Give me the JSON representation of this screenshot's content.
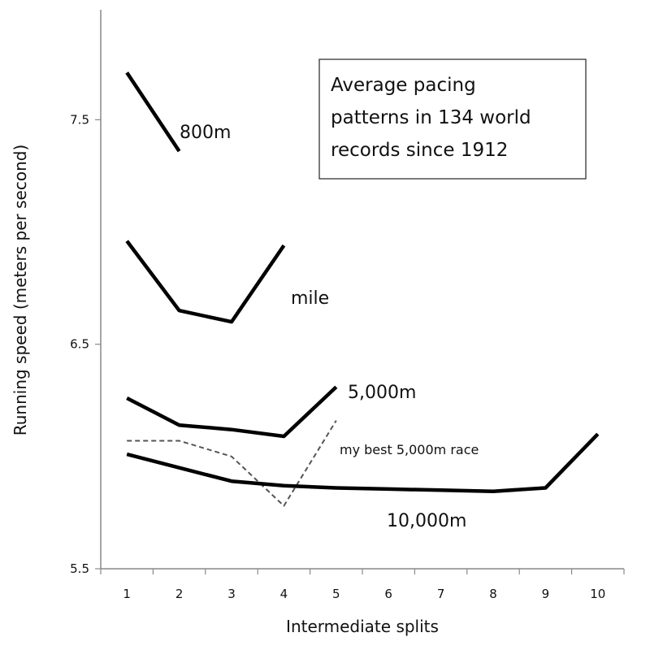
{
  "chart_data": {
    "type": "line",
    "title_lines": [
      "Average pacing",
      "patterns in 134 world",
      "records since 1912"
    ],
    "xlabel": "Intermediate splits",
    "ylabel": "Running speed (meters per second)",
    "x_ticks": [
      "1",
      "2",
      "3",
      "4",
      "5",
      "6",
      "7",
      "8",
      "9",
      "10"
    ],
    "y_ticks": [
      "5.5",
      "6.5",
      "7.5"
    ],
    "ylim": [
      5.5,
      7.99
    ],
    "xlim": [
      0.5,
      10.5
    ],
    "series": [
      {
        "name": "800m",
        "style": "solid",
        "x": [
          1,
          2
        ],
        "values": [
          7.71,
          7.36
        ]
      },
      {
        "name": "mile",
        "style": "solid",
        "x": [
          1,
          2,
          3,
          4
        ],
        "values": [
          6.96,
          6.65,
          6.6,
          6.94
        ]
      },
      {
        "name": "5,000m",
        "style": "solid",
        "x": [
          1,
          2,
          3,
          4,
          5
        ],
        "values": [
          6.26,
          6.14,
          6.12,
          6.09,
          6.31
        ]
      },
      {
        "name": "my best 5,000m race",
        "style": "dashed",
        "x": [
          1,
          2,
          3,
          4,
          5
        ],
        "values": [
          6.07,
          6.07,
          6.0,
          5.78,
          6.16
        ]
      },
      {
        "name": "10,000m",
        "style": "solid",
        "x": [
          1,
          2,
          3,
          4,
          5,
          6,
          7,
          8,
          9,
          10
        ],
        "values": [
          6.01,
          5.95,
          5.89,
          5.87,
          5.86,
          5.855,
          5.85,
          5.845,
          5.86,
          6.1
        ]
      }
    ],
    "colors": {
      "line": "#000000",
      "dashed": "#555555",
      "axis": "#888888"
    }
  }
}
